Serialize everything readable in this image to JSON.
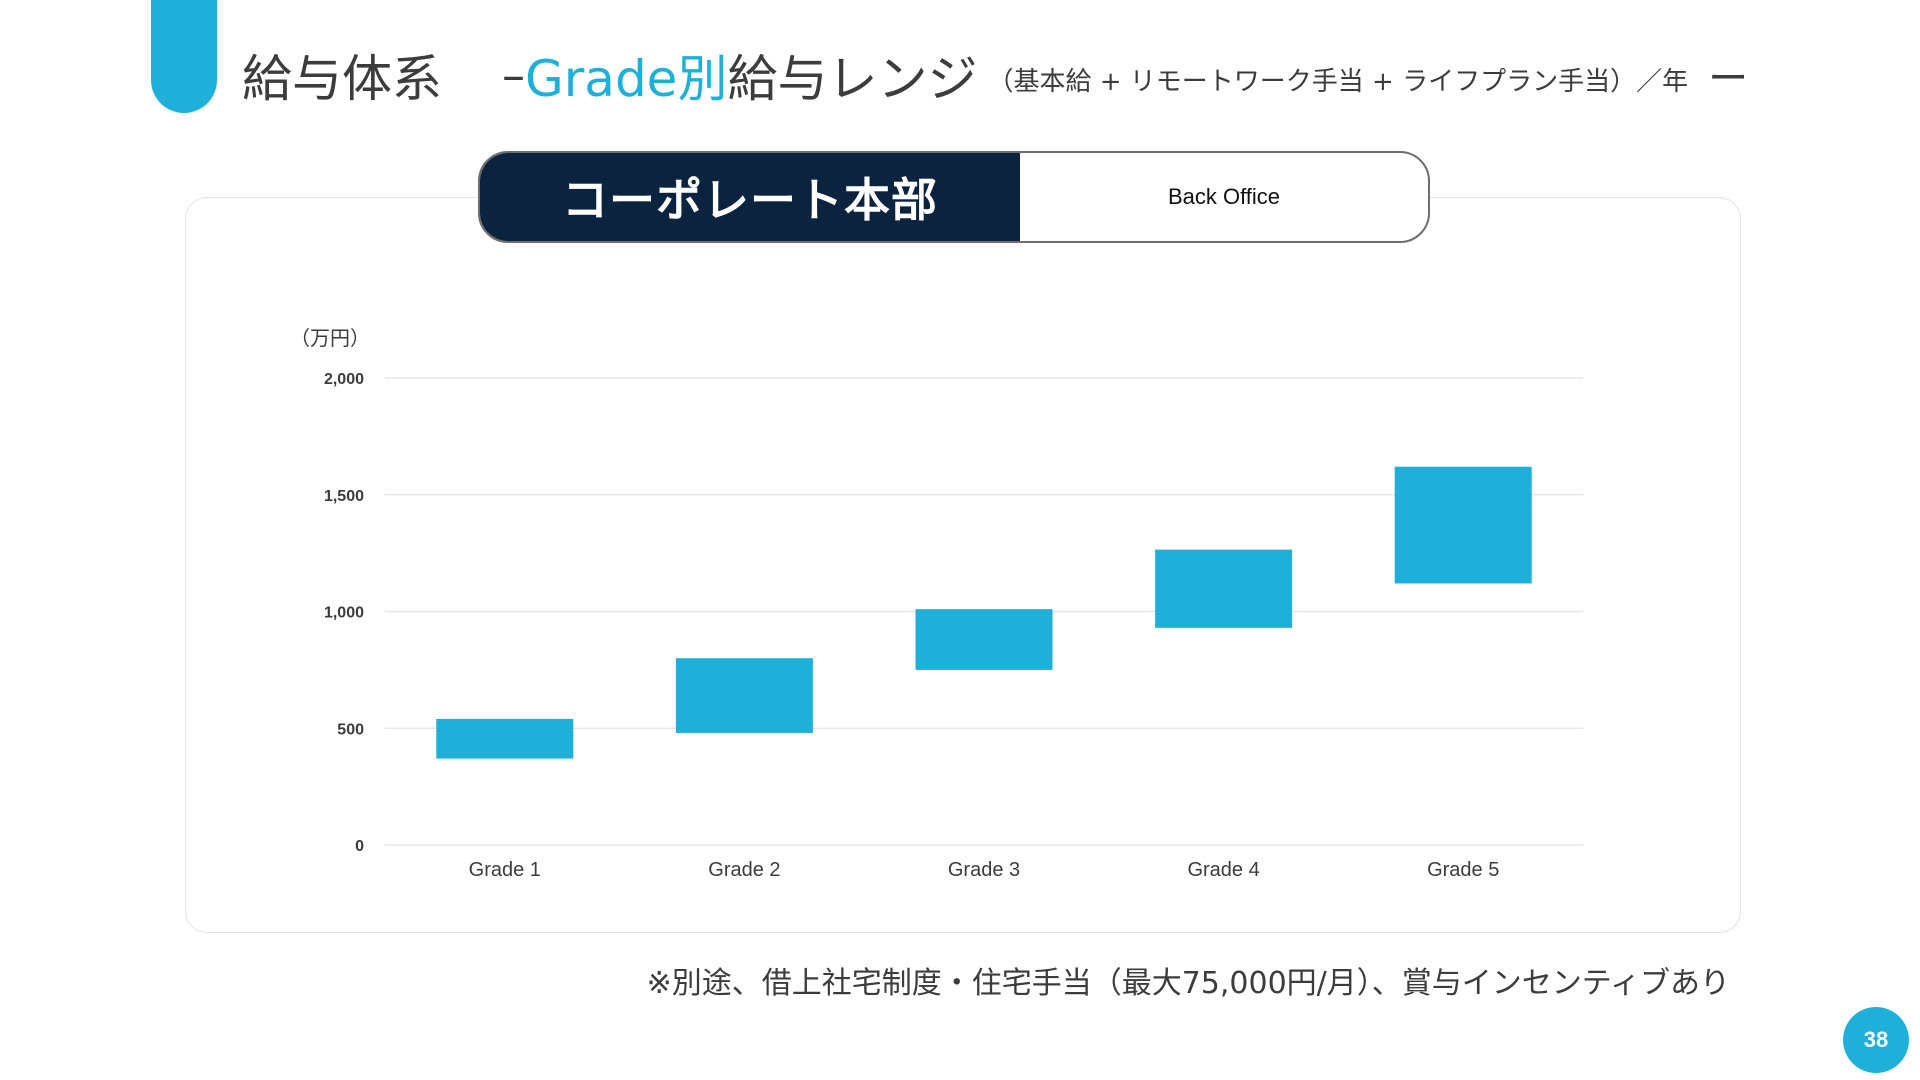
{
  "header": {
    "title_main": "給与体系",
    "title_dash": "–",
    "title_grade": "Grade別",
    "title_range": "給与レンジ",
    "title_sub": "（基本給 + リモートワーク手当 + ライフプラン手当）／年",
    "title_tail": "ー"
  },
  "tabs": {
    "active_label": "コーポレート本部",
    "inactive_label": "Back Office"
  },
  "colors": {
    "accent": "#1fb0d9",
    "navy": "#0c2340",
    "bar": "#1fb0d9",
    "grid": "#e3e3e3",
    "text": "#3c3c3c"
  },
  "chart_data": {
    "type": "bar",
    "subtype": "floating-range",
    "unit_label": "（万円）",
    "categories": [
      "Grade 1",
      "Grade 2",
      "Grade 3",
      "Grade 4",
      "Grade 5"
    ],
    "series": [
      {
        "low": [
          370,
          480,
          750,
          930,
          1120
        ],
        "high": [
          540,
          800,
          1010,
          1265,
          1620
        ]
      }
    ],
    "ylim": [
      0,
      2000
    ],
    "yticks": [
      0,
      500,
      1000,
      1500,
      2000
    ],
    "ytick_labels": [
      "0",
      "500",
      "1,000",
      "1,500",
      "2,000"
    ],
    "grid": true,
    "legend": "none"
  },
  "footnote": "※別途、借上社宅制度・住宅手当（最大75,000円/月）、賞与インセンティブあり",
  "page_number": "38"
}
